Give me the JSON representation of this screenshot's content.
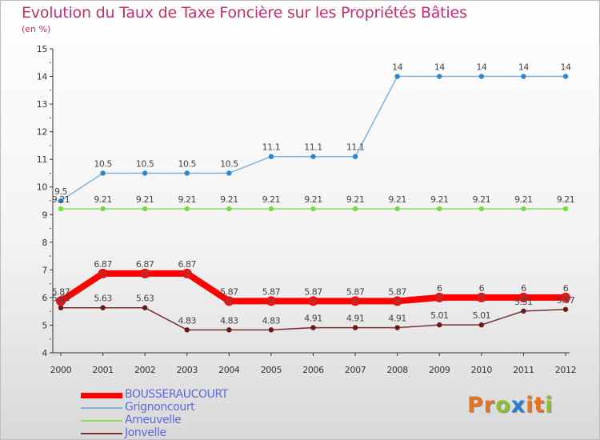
{
  "title": "Evolution du Taux de Taxe Foncière sur les Propriétés Bâties",
  "subtitle": "(en %)",
  "logo": {
    "text": "Proxiti",
    "letters": [
      "P",
      "r",
      "o",
      "x",
      "i",
      "t",
      "i"
    ],
    "colors": [
      "#e8731f",
      "#e8731f",
      "#8fbf2e",
      "#2a7fd4",
      "#e8731f",
      "#e8731f",
      "#8fbf2e"
    ]
  },
  "chart_data": {
    "type": "line",
    "title": "Evolution du Taux de Taxe Foncière sur les Propriétés Bâties",
    "ylabel": "(en %)",
    "xlabel": "",
    "x": [
      "2000",
      "2001",
      "2002",
      "2003",
      "2004",
      "2005",
      "2006",
      "2007",
      "2008",
      "2009",
      "2010",
      "2011",
      "2012"
    ],
    "ylim": [
      4,
      15
    ],
    "yticks": [
      4,
      5,
      6,
      7,
      8,
      9,
      10,
      11,
      12,
      13,
      14,
      15
    ],
    "grid": false,
    "legend_position": "bottom-left",
    "series": [
      {
        "name": "BOUSSERAUCOURT",
        "color": "#ff0000",
        "marker": "#cc2222",
        "width": 8,
        "values": [
          5.87,
          6.87,
          6.87,
          6.87,
          5.87,
          5.87,
          5.87,
          5.87,
          5.87,
          6,
          6,
          6,
          6
        ],
        "labels": [
          "5.87",
          "6.87",
          "6.87",
          "6.87",
          "5.87",
          "5.87",
          "5.87",
          "5.87",
          "5.87",
          "6",
          "6",
          "6",
          "6"
        ]
      },
      {
        "name": "Grignoncourt",
        "color": "#7fb2dd",
        "marker": "#2f86c8",
        "width": 1.5,
        "values": [
          9.5,
          10.5,
          10.5,
          10.5,
          10.5,
          11.1,
          11.1,
          11.1,
          14,
          14,
          14,
          14,
          14
        ],
        "labels": [
          "9.5",
          "10.5",
          "10.5",
          "10.5",
          "10.5",
          "11.1",
          "11.1",
          "11.1",
          "14",
          "14",
          "14",
          "14",
          "14"
        ]
      },
      {
        "name": "Ameuvelle",
        "color": "#8ddc5a",
        "marker": "#7ad84a",
        "width": 1.5,
        "values": [
          9.21,
          9.21,
          9.21,
          9.21,
          9.21,
          9.21,
          9.21,
          9.21,
          9.21,
          9.21,
          9.21,
          9.21,
          9.21
        ],
        "labels": [
          "9.21",
          "9.21",
          "9.21",
          "9.21",
          "9.21",
          "9.21",
          "9.21",
          "9.21",
          "9.21",
          "9.21",
          "9.21",
          "9.21",
          "9.21"
        ]
      },
      {
        "name": "Jonvelle",
        "color": "#7a2f2f",
        "marker": "#6b1a1a",
        "width": 1.5,
        "values": [
          5.63,
          5.63,
          5.63,
          4.83,
          4.83,
          4.83,
          4.91,
          4.91,
          4.91,
          5.01,
          5.01,
          5.51,
          5.57
        ],
        "labels": [
          "5.63",
          "5.63",
          "5.63",
          "4.83",
          "4.83",
          "4.83",
          "4.91",
          "4.91",
          "4.91",
          "5.01",
          "5.01",
          "5.51",
          "5.57"
        ]
      }
    ]
  }
}
